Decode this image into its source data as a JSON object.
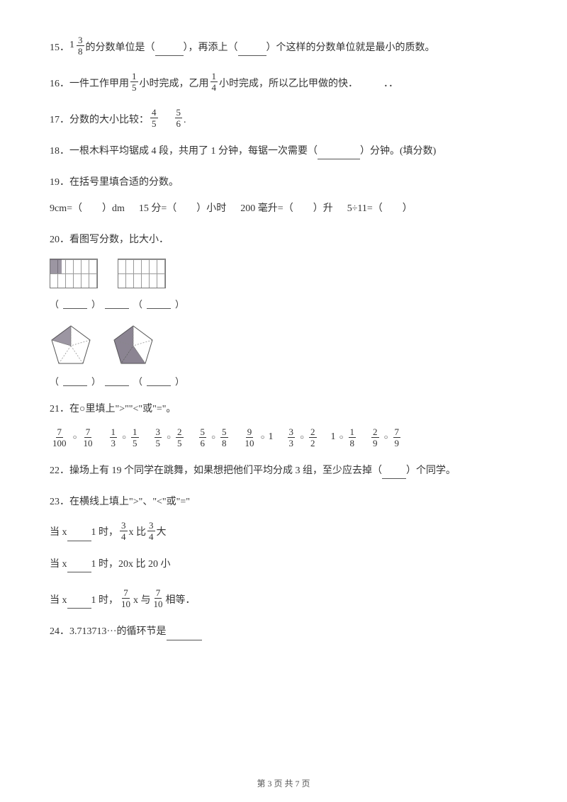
{
  "q15": {
    "num": "15．",
    "mixed_whole": "1",
    "mixed_num": "3",
    "mixed_den": "8",
    "t1": "的分数单位是（",
    "t2": "），再添上（",
    "t3": "）个这样的分数单位就是最小的质数。"
  },
  "q16": {
    "num": "16．",
    "t1": "一件工作甲用",
    "f1_num": "1",
    "f1_den": "5",
    "t2": "小时完成，乙用",
    "f2_num": "1",
    "f2_den": "4",
    "t3": "小时完成，所以乙比甲做的快．",
    "dots": "．．"
  },
  "q17": {
    "num": "17．",
    "t1": "分数的大小比较：",
    "f1_num": "4",
    "f1_den": "5",
    "f2_num": "5",
    "f2_den": "6",
    "end": "."
  },
  "q18": {
    "num": "18．",
    "t1": "一根木料平均锯成 4 段，共用了 1 分钟，每锯一次需要（",
    "t2": "）分钟。(填分数)"
  },
  "q19": {
    "num": "19．",
    "t1": "在括号里填合适的分数。"
  },
  "q19b": {
    "a": "9cm=（　　）dm",
    "b": "15 分=（　　）小时",
    "c": "200 毫升=（　　）升",
    "d": "5÷11=（　　）"
  },
  "q20": {
    "num": "20．",
    "t1": "看图写分数，比大小．"
  },
  "q20_paren": {
    "l": "（",
    "r": "）"
  },
  "q21": {
    "num": "21．",
    "t1": "在○里填上\">\"\"<\"或\"=\"。"
  },
  "q21_items": [
    {
      "a_num": "7",
      "a_den": "100",
      "b_num": "7",
      "b_den": "10"
    },
    {
      "a_num": "1",
      "a_den": "3",
      "b_num": "1",
      "b_den": "5"
    },
    {
      "a_num": "3",
      "a_den": "5",
      "b_num": "2",
      "b_den": "5"
    },
    {
      "a_num": "5",
      "a_den": "6",
      "b_num": "5",
      "b_den": "8"
    },
    {
      "a_num": "9",
      "a_den": "10",
      "b_whole": "1"
    },
    {
      "a_num": "3",
      "a_den": "3",
      "b_num": "2",
      "b_den": "2"
    },
    {
      "a_whole": "1",
      "b_num": "1",
      "b_den": "8"
    },
    {
      "a_num": "2",
      "a_den": "9",
      "b_num": "7",
      "b_den": "9"
    }
  ],
  "q22": {
    "num": "22．",
    "t1": "操场上有 19 个同学在跳舞，如果想把他们平均分成 3 组，至少应去掉（",
    "t2": "）个同学。"
  },
  "q23": {
    "num": "23．",
    "t1": "在横线上填上\">\"、\"<\"或\"=\""
  },
  "q23a": {
    "t1": "当 x",
    "t2": "1 时，",
    "f1_num": "3",
    "f1_den": "4",
    "t3": "x 比",
    "f2_num": "3",
    "f2_den": "4",
    "t4": "大"
  },
  "q23b": {
    "t1": "当 x",
    "t2": "1 时，20x 比 20 小"
  },
  "q23c": {
    "t1": "当 x",
    "t2": "1 时，",
    "f1_num": "7",
    "f1_den": "10",
    "t3": "x 与",
    "f2_num": "7",
    "f2_den": "10",
    "t4": "相等．"
  },
  "q24": {
    "num": "24．",
    "t1": "3.713713···的循环节是"
  },
  "footer": "第 3 页 共 7 页"
}
